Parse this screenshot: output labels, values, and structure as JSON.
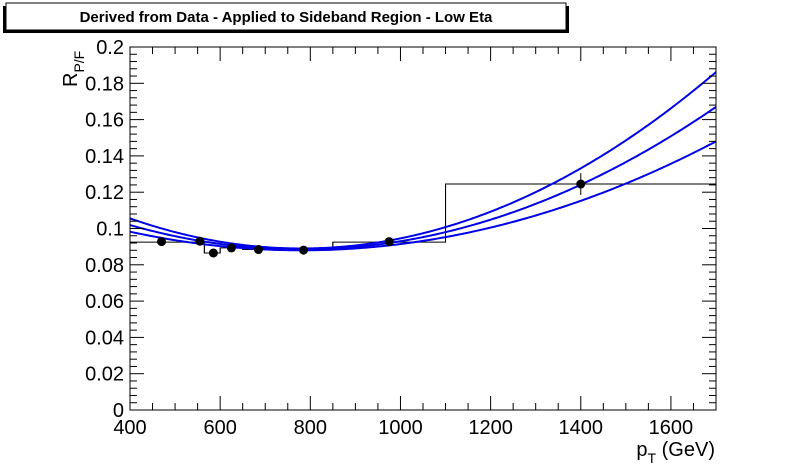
{
  "chart_data": {
    "type": "scatter",
    "title": "Derived from Data - Applied to Sideband Region - Low Eta",
    "xlabel": {
      "main": "p",
      "sub": "T",
      "suffix": " (GeV)"
    },
    "ylabel": {
      "main": "R",
      "sub": "P/F"
    },
    "xlim": [
      400,
      1700
    ],
    "ylim": [
      0,
      0.2
    ],
    "xticks": [
      400,
      600,
      800,
      1000,
      1200,
      1400,
      1600
    ],
    "xtick_labels": [
      "400",
      "600",
      "800",
      "1000",
      "1200",
      "1400",
      "1600"
    ],
    "yticks": [
      0,
      0.02,
      0.04,
      0.06,
      0.08,
      0.1,
      0.12,
      0.14,
      0.16,
      0.18,
      0.2
    ],
    "ytick_labels": [
      "0",
      "0.02",
      "0.04",
      "0.06",
      "0.08",
      "0.1",
      "0.12",
      "0.14",
      "0.16",
      "0.18",
      "0.2"
    ],
    "points": [
      {
        "x": 470,
        "y": 0.0928,
        "yerr": 0.001
      },
      {
        "x": 555,
        "y": 0.093,
        "yerr": 0.001
      },
      {
        "x": 585,
        "y": 0.0865,
        "yerr": 0.002
      },
      {
        "x": 625,
        "y": 0.0893,
        "yerr": 0.001
      },
      {
        "x": 685,
        "y": 0.0884,
        "yerr": 0.001
      },
      {
        "x": 785,
        "y": 0.0881,
        "yerr": 0.001
      },
      {
        "x": 975,
        "y": 0.0928,
        "yerr": 0.002
      },
      {
        "x": 1400,
        "y": 0.1245,
        "yerr": 0.006
      }
    ],
    "histogram_steps": [
      {
        "x0": 400,
        "x1": 565,
        "y": 0.0925
      },
      {
        "x0": 565,
        "x1": 600,
        "y": 0.0865
      },
      {
        "x0": 600,
        "x1": 650,
        "y": 0.0893
      },
      {
        "x0": 650,
        "x1": 720,
        "y": 0.0884
      },
      {
        "x0": 720,
        "x1": 850,
        "y": 0.0881
      },
      {
        "x0": 850,
        "x1": 1100,
        "y": 0.0925
      },
      {
        "x0": 1100,
        "x1": 1700,
        "y": 0.1245
      }
    ],
    "fit_curves": [
      {
        "name": "",
        "vertex_x": 780,
        "vertex_y": 0.089,
        "end_y": 0.1862
      },
      {
        "name": "",
        "vertex_x": 780,
        "vertex_y": 0.0885,
        "end_y": 0.167
      },
      {
        "name": "",
        "vertex_x": 780,
        "vertex_y": 0.088,
        "end_y": 0.148
      }
    ],
    "colors": {
      "fit": "#0000e6",
      "points": "#000000",
      "axes": "#000000"
    },
    "grid": false,
    "legend": "none"
  }
}
